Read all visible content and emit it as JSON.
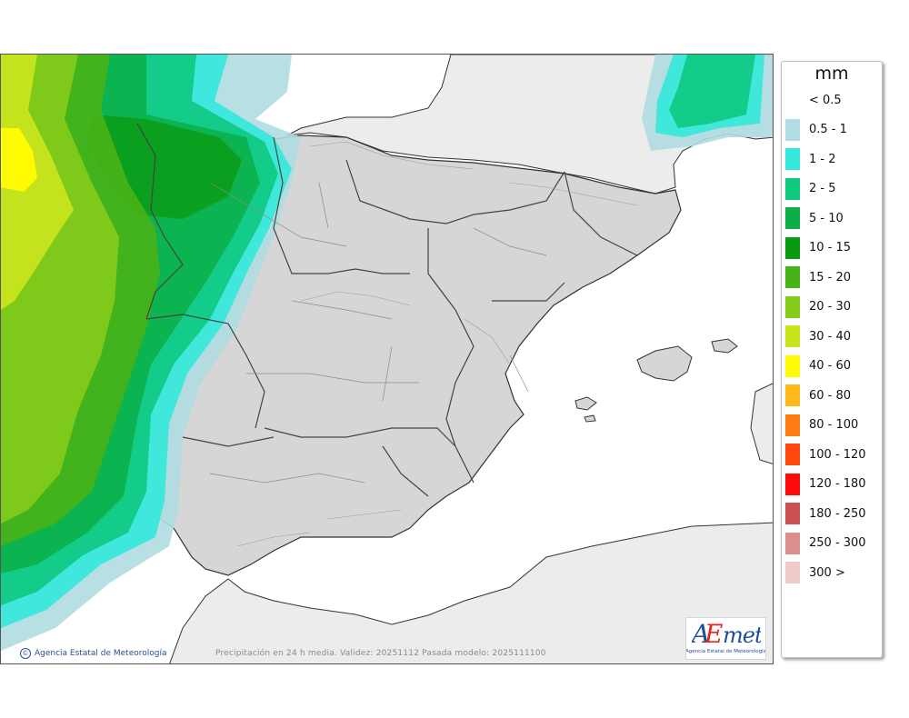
{
  "legend": {
    "unit": "mm",
    "items": [
      {
        "label": "< 0.5",
        "color": "#ffffff"
      },
      {
        "label": "0.5 - 1",
        "color": "#b0dde1"
      },
      {
        "label": "1 - 2",
        "color": "#33e8da"
      },
      {
        "label": "2 - 5",
        "color": "#10c97f"
      },
      {
        "label": "5 - 10",
        "color": "#0bae48"
      },
      {
        "label": "10 - 15",
        "color": "#0a9a12"
      },
      {
        "label": "15 - 20",
        "color": "#48b316"
      },
      {
        "label": "20 - 30",
        "color": "#86cb1b"
      },
      {
        "label": "30 - 40",
        "color": "#c8e51c"
      },
      {
        "label": "40 - 60",
        "color": "#fefb02"
      },
      {
        "label": "60 - 80",
        "color": "#fdb81a"
      },
      {
        "label": "80 - 100",
        "color": "#fe7d12"
      },
      {
        "label": "100 - 120",
        "color": "#ff460d"
      },
      {
        "label": "120 - 180",
        "color": "#fe0c0c"
      },
      {
        "label": "180 - 250",
        "color": "#cb5252"
      },
      {
        "label": "250 - 300",
        "color": "#dd8f8f"
      },
      {
        "label": "300 >",
        "color": "#f0c9c9"
      }
    ]
  },
  "footer": {
    "credit": "Agencia Estatal de Meteorología",
    "validity": "Precipitación en 24 h media. Validez: 20251112 Pasada modelo: 2025111100"
  },
  "logo": {
    "word": "AEmet",
    "subtitle": "Agencia Estatal de Meteorología"
  }
}
